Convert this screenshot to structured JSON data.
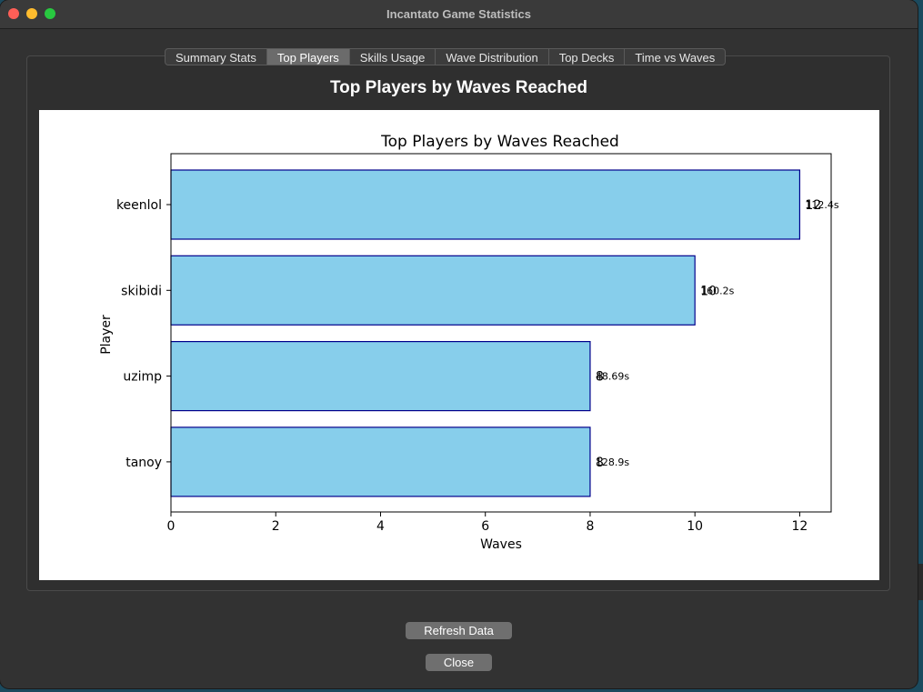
{
  "window": {
    "title": "Incantato Game Statistics"
  },
  "tabs": [
    {
      "label": "Summary Stats",
      "active": false
    },
    {
      "label": "Top Players",
      "active": true
    },
    {
      "label": "Skills Usage",
      "active": false
    },
    {
      "label": "Wave Distribution",
      "active": false
    },
    {
      "label": "Top Decks",
      "active": false
    },
    {
      "label": "Time vs Waves",
      "active": false
    }
  ],
  "section": {
    "heading": "Top Players by Waves Reached"
  },
  "buttons": {
    "refresh_label": "Refresh Data",
    "close_label": "Close"
  },
  "chart_data": {
    "type": "bar",
    "orientation": "horizontal",
    "title": "Top Players by Waves Reached",
    "xlabel": "Waves",
    "ylabel": "Player",
    "categories": [
      "keenlol",
      "skibidi",
      "uzimp",
      "tanoy"
    ],
    "values": [
      12,
      10,
      8,
      8
    ],
    "value_labels": [
      "12",
      "10",
      "8",
      "8"
    ],
    "time_labels": [
      "112.4s",
      "160.2s",
      "48.69s",
      "128.9s"
    ],
    "xlim": [
      0,
      12.6
    ],
    "xticks": [
      0,
      2,
      4,
      6,
      8,
      10,
      12
    ],
    "bar_color": "#87ceeb",
    "bar_edge_color": "#00008b",
    "grid": false,
    "legend": "none"
  }
}
